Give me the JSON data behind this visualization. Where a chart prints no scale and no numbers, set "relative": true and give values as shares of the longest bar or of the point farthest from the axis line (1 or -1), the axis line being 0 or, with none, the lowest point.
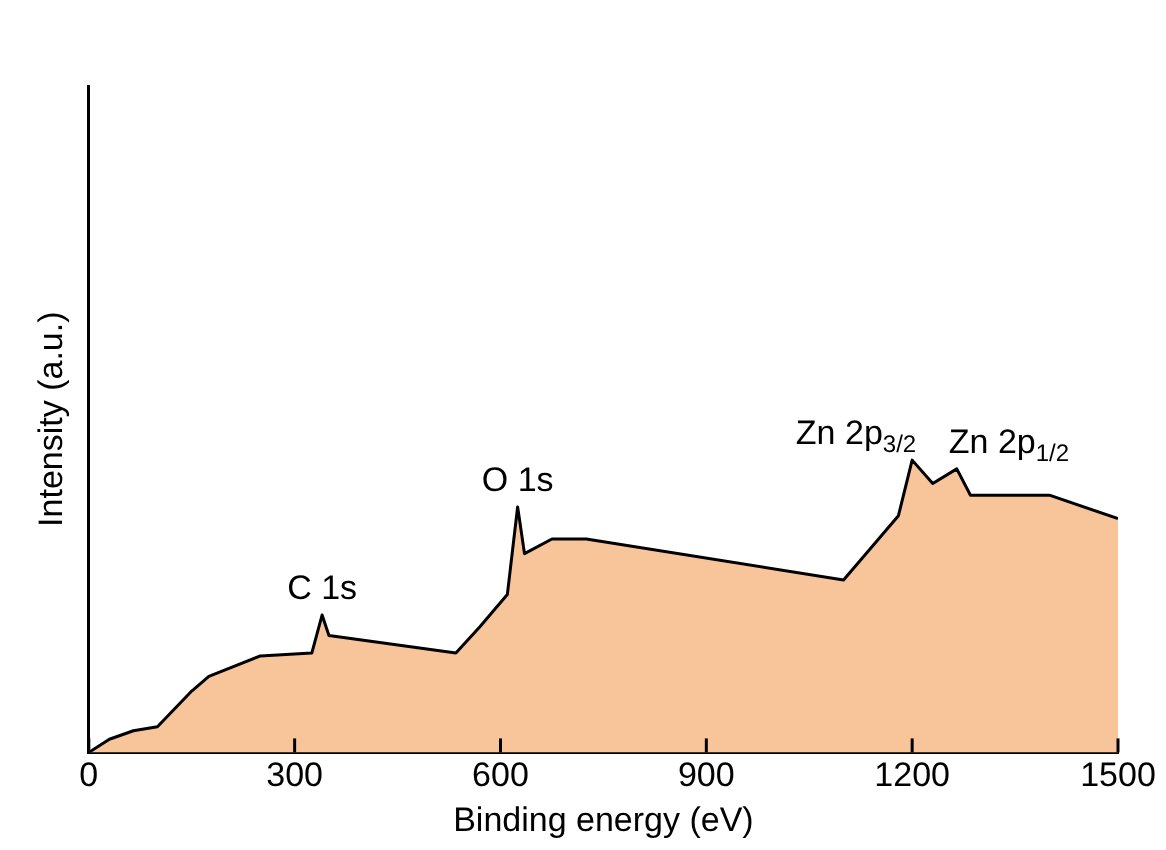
{
  "chart_data": {
    "type": "area",
    "xlabel": "Binding energy (eV)",
    "ylabel": "Intensity (a.u.)",
    "relative": true,
    "x": [
      0,
      30,
      65,
      100,
      150,
      175,
      250,
      325,
      340,
      350,
      535,
      570,
      610,
      625,
      635,
      675,
      725,
      1100,
      1180,
      1200,
      1230,
      1265,
      1285,
      1400,
      1500
    ],
    "series": [
      {
        "color": "#f8c59b",
        "values": [
          0,
          0.045,
          0.074,
          0.088,
          0.21,
          0.26,
          0.33,
          0.34,
          0.47,
          0.4,
          0.34,
          0.43,
          0.54,
          0.84,
          0.68,
          0.73,
          0.73,
          0.59,
          0.81,
          1,
          0.92,
          0.97,
          0.88,
          0.88,
          0.8
        ]
      }
    ],
    "xlim": [
      0,
      1500
    ],
    "xticks": [
      0,
      300,
      600,
      900,
      1200,
      1500
    ],
    "grid": false,
    "legend": false,
    "annotations": [
      {
        "text": "C 1s",
        "x": 340,
        "y": 0.47
      },
      {
        "text": "O 1s",
        "x": 625,
        "y": 0.84
      },
      {
        "text": "Zn 2p$_{3/2}$",
        "x": 1200,
        "y": 1
      },
      {
        "text": "Zn 2p$_{1/2}$",
        "x": 1265,
        "y": 0.97
      }
    ]
  }
}
